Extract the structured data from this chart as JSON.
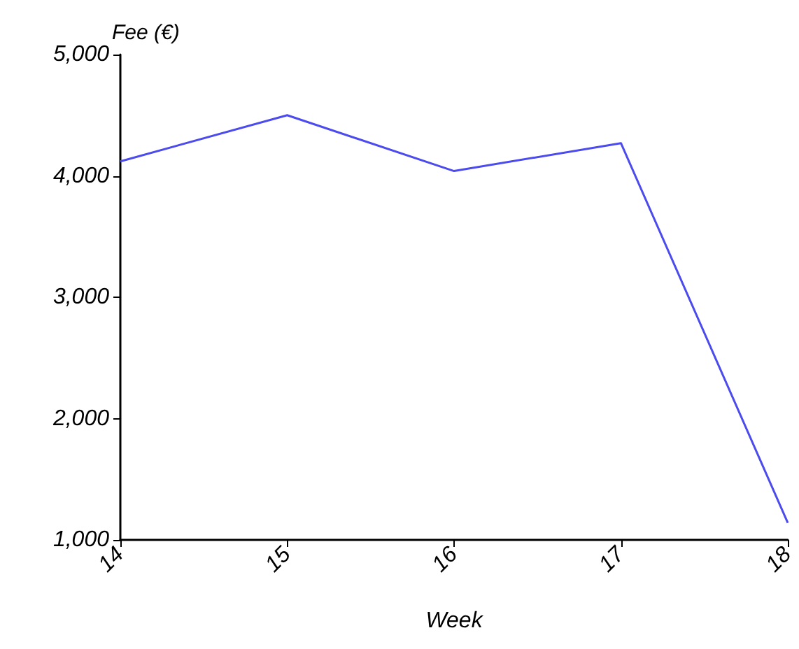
{
  "chart_data": {
    "type": "line",
    "xlabel": "Week",
    "ylabel": "Fee (€)",
    "categories": [
      "14",
      "15",
      "16",
      "17",
      "18"
    ],
    "series": [
      {
        "color": "#4b4bee",
        "values": [
          4120,
          4500,
          4040,
          4270,
          1140
        ]
      }
    ],
    "ylim": [
      1000,
      5000
    ],
    "yticks": [
      {
        "value": 1000,
        "label": "1,000"
      },
      {
        "value": 2000,
        "label": "2,000"
      },
      {
        "value": 3000,
        "label": "3,000"
      },
      {
        "value": 4000,
        "label": "4,000"
      },
      {
        "value": 5000,
        "label": "5,000"
      }
    ],
    "grid": false,
    "marker": "none",
    "line_style": "solid"
  }
}
